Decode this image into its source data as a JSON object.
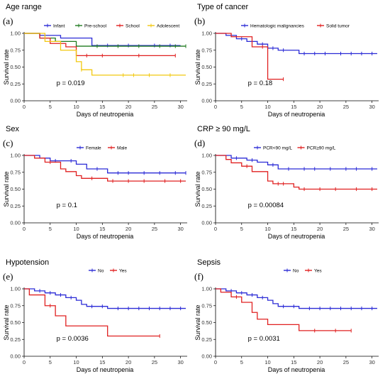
{
  "chart_data": [
    {
      "type": "line",
      "panel_label": "(a)",
      "title": "Age range",
      "xlabel": "Days of neutropenia",
      "ylabel": "Survival rate",
      "xlim": [
        0,
        31
      ],
      "ylim": [
        0,
        1
      ],
      "xticks": [
        "0",
        "5",
        "10",
        "15",
        "20",
        "25",
        "30"
      ],
      "yticks": [
        "0.00",
        "0.25",
        "0.50",
        "0.75",
        "1.00"
      ],
      "p_value": "p = 0.019",
      "legend_position": "top",
      "series": [
        {
          "name": "Infant",
          "color": "#2b2bd6",
          "x": [
            0,
            3,
            7,
            13,
            30
          ],
          "y": [
            1.0,
            0.97,
            0.93,
            0.82,
            0.82
          ],
          "censor": [
            16,
            20,
            25,
            28
          ]
        },
        {
          "name": "Pre-school",
          "color": "#1f7a1f",
          "x": [
            0,
            3,
            6,
            10,
            31
          ],
          "y": [
            1.0,
            0.93,
            0.88,
            0.81,
            0.81
          ],
          "censor": [
            14,
            18,
            22,
            26,
            29,
            31
          ]
        },
        {
          "name": "School",
          "color": "#e02020",
          "x": [
            0,
            3,
            5,
            8,
            10,
            29
          ],
          "y": [
            1.0,
            0.93,
            0.85,
            0.8,
            0.67,
            0.67
          ],
          "censor": [
            12,
            15,
            22,
            29
          ]
        },
        {
          "name": "Adolescent",
          "color": "#f2c80f",
          "x": [
            0,
            4,
            7,
            10,
            11,
            13,
            31
          ],
          "y": [
            1.0,
            0.88,
            0.75,
            0.58,
            0.46,
            0.38,
            0.38
          ],
          "censor": [
            11,
            19,
            21,
            24,
            28
          ]
        }
      ]
    },
    {
      "type": "line",
      "panel_label": "(b)",
      "title": "Type of cancer",
      "xlabel": "Days of neutropenia",
      "ylabel": "Survival rate",
      "xlim": [
        0,
        31
      ],
      "ylim": [
        0,
        1
      ],
      "xticks": [
        "0",
        "5",
        "10",
        "15",
        "20",
        "25",
        "30"
      ],
      "yticks": [
        "0.00",
        "0.25",
        "0.50",
        "0.75",
        "1.00"
      ],
      "p_value": "p = 0.18",
      "legend_position": "top",
      "series": [
        {
          "name": "Hematologic malignancies",
          "color": "#2b2bd6",
          "x": [
            0,
            2,
            4,
            6,
            8,
            10,
            12,
            16,
            31
          ],
          "y": [
            1.0,
            0.97,
            0.92,
            0.88,
            0.84,
            0.78,
            0.75,
            0.7,
            0.7
          ],
          "censor": [
            3,
            5,
            9,
            11,
            13,
            17,
            19,
            21,
            24,
            26,
            28,
            30
          ]
        },
        {
          "name": "Solid tumor",
          "color": "#e02020",
          "x": [
            0,
            3,
            7,
            10,
            13
          ],
          "y": [
            1.0,
            0.95,
            0.8,
            0.32,
            0.32
          ],
          "censor": [
            9,
            13
          ]
        }
      ]
    },
    {
      "type": "line",
      "panel_label": "(c)",
      "title": "Sex",
      "xlabel": "Days of neutropenia",
      "ylabel": "Survival rate",
      "xlim": [
        0,
        31
      ],
      "ylim": [
        0,
        1
      ],
      "xticks": [
        "0",
        "5",
        "10",
        "15",
        "20",
        "25",
        "30"
      ],
      "yticks": [
        "0.00",
        "0.25",
        "0.50",
        "0.75",
        "1.00"
      ],
      "p_value": "p = 0.1",
      "legend_position": "top",
      "series": [
        {
          "name": "Female",
          "color": "#2b2bd6",
          "x": [
            0,
            3,
            5,
            10,
            12,
            16,
            31
          ],
          "y": [
            1.0,
            0.96,
            0.92,
            0.87,
            0.8,
            0.74,
            0.74
          ],
          "censor": [
            6,
            9,
            14,
            18,
            20,
            23,
            26,
            29,
            31
          ]
        },
        {
          "name": "Male",
          "color": "#e02020",
          "x": [
            0,
            2,
            4,
            7,
            8,
            10,
            11,
            16,
            31
          ],
          "y": [
            1.0,
            0.96,
            0.9,
            0.8,
            0.76,
            0.7,
            0.66,
            0.62,
            0.62
          ],
          "censor": [
            5,
            13,
            17,
            20,
            23,
            27,
            30
          ]
        }
      ]
    },
    {
      "type": "line",
      "panel_label": "(d)",
      "title": "CRP ≥ 90 mg/L",
      "xlabel": "Days of neutropenia",
      "ylabel": "Survival rate",
      "xlim": [
        0,
        31
      ],
      "ylim": [
        0,
        1
      ],
      "xticks": [
        "0",
        "5",
        "10",
        "15",
        "20",
        "25",
        "30"
      ],
      "yticks": [
        "0.00",
        "0.25",
        "0.50",
        "0.75",
        "1.00"
      ],
      "p_value": "p = 0.00084",
      "legend_position": "top",
      "series": [
        {
          "name": "PCR<90 mg/L",
          "color": "#2b2bd6",
          "x": [
            0,
            3,
            6,
            8,
            10,
            12,
            31
          ],
          "y": [
            1.0,
            0.96,
            0.93,
            0.9,
            0.86,
            0.8,
            0.8
          ],
          "censor": [
            4,
            7,
            11,
            14,
            17,
            19,
            22,
            25,
            27,
            30
          ]
        },
        {
          "name": "PCR≥90 mg/L",
          "color": "#e02020",
          "x": [
            0,
            2,
            3,
            5,
            7,
            10,
            11,
            15,
            16,
            31
          ],
          "y": [
            1.0,
            0.94,
            0.89,
            0.84,
            0.76,
            0.62,
            0.58,
            0.53,
            0.5,
            0.5
          ],
          "censor": [
            6,
            12,
            13,
            17,
            20,
            23,
            27,
            30
          ]
        }
      ]
    },
    {
      "type": "line",
      "panel_label": "(e)",
      "title": "Hypotension",
      "xlabel": "Days of neutropenia",
      "ylabel": "Survival rate",
      "xlim": [
        0,
        31
      ],
      "ylim": [
        0,
        1
      ],
      "xticks": [
        "0",
        "5",
        "10",
        "15",
        "20",
        "25",
        "30"
      ],
      "yticks": [
        "0.00",
        "0.25",
        "0.50",
        "0.75",
        "1.00"
      ],
      "p_value": "p = 0.0036",
      "legend_position": "top",
      "series": [
        {
          "name": "No",
          "color": "#2b2bd6",
          "x": [
            0,
            2,
            4,
            6,
            8,
            10,
            11,
            12,
            16,
            31
          ],
          "y": [
            1.0,
            0.97,
            0.94,
            0.91,
            0.87,
            0.83,
            0.77,
            0.74,
            0.71,
            0.71
          ],
          "censor": [
            3,
            5,
            7,
            9,
            13,
            15,
            18,
            20,
            22,
            24,
            26,
            28,
            30
          ]
        },
        {
          "name": "Yes",
          "color": "#e02020",
          "x": [
            0,
            1,
            4,
            6,
            8,
            16,
            26
          ],
          "y": [
            1.0,
            0.91,
            0.75,
            0.6,
            0.45,
            0.3,
            0.3
          ],
          "censor": [
            5,
            26
          ]
        }
      ]
    },
    {
      "type": "line",
      "panel_label": "(f)",
      "title": "Sepsis",
      "xlabel": "Days of neutropenia",
      "ylabel": "Survival rate",
      "xlim": [
        0,
        31
      ],
      "ylim": [
        0,
        1
      ],
      "xticks": [
        "0",
        "5",
        "10",
        "15",
        "20",
        "25",
        "30"
      ],
      "yticks": [
        "0.00",
        "0.25",
        "0.50",
        "0.75",
        "1.00"
      ],
      "p_value": "p = 0.0031",
      "legend_position": "top",
      "series": [
        {
          "name": "No",
          "color": "#2b2bd6",
          "x": [
            0,
            2,
            4,
            6,
            8,
            10,
            11,
            12,
            16,
            31
          ],
          "y": [
            1.0,
            0.97,
            0.94,
            0.91,
            0.87,
            0.83,
            0.78,
            0.74,
            0.71,
            0.71
          ],
          "censor": [
            3,
            5,
            7,
            9,
            13,
            15,
            18,
            20,
            22,
            24,
            26,
            28,
            30
          ]
        },
        {
          "name": "Yes",
          "color": "#e02020",
          "x": [
            0,
            1,
            3,
            5,
            7,
            8,
            10,
            16,
            26
          ],
          "y": [
            1.0,
            0.95,
            0.88,
            0.8,
            0.65,
            0.55,
            0.47,
            0.38,
            0.38
          ],
          "censor": [
            4,
            19,
            23,
            26
          ]
        }
      ]
    }
  ]
}
